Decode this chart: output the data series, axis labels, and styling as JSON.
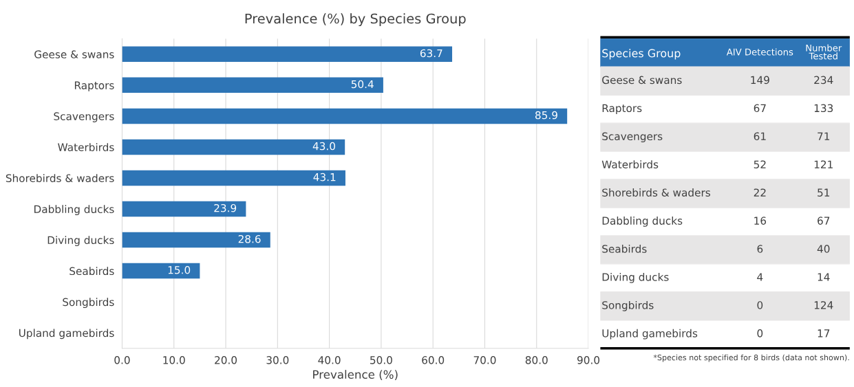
{
  "chart_data": [
    {
      "type": "bar",
      "orientation": "horizontal",
      "title": "Prevalence (%) by Species Group",
      "xlabel": "Prevalence (%)",
      "categories": [
        "Geese & swans",
        "Raptors",
        "Scavengers",
        "Waterbirds",
        "Shorebirds & waders",
        "Dabbling ducks",
        "Diving ducks",
        "Seabirds",
        "Songbirds",
        "Upland gamebirds"
      ],
      "values": [
        63.7,
        50.4,
        85.9,
        43.0,
        43.1,
        23.9,
        28.6,
        15.0,
        null,
        null
      ],
      "value_labels": [
        "63.7",
        "50.4",
        "85.9",
        "43.0",
        "43.1",
        "23.9",
        "28.6",
        "15.0",
        null,
        null
      ],
      "color": "#2e75b6",
      "xlim": [
        0,
        90
      ],
      "xticks": [
        {
          "value": 0,
          "label": "0.0"
        },
        {
          "value": 10,
          "label": "10.0"
        },
        {
          "value": 20,
          "label": "20.0"
        },
        {
          "value": 30,
          "label": "30.0"
        },
        {
          "value": 40,
          "label": "40.0"
        },
        {
          "value": 50,
          "label": "50.0"
        },
        {
          "value": 60,
          "label": "60.0"
        },
        {
          "value": 70,
          "label": "70.0"
        },
        {
          "value": 80,
          "label": "80.0"
        },
        {
          "value": 90,
          "label": "90.0"
        }
      ],
      "grid": "x",
      "legend": false
    },
    {
      "type": "other",
      "legend_title": "Species Group",
      "categories": [
        "Geese & swans",
        "Raptors",
        "Scavengers",
        "Waterbirds",
        "Shorebirds & waders",
        "Dabbling ducks",
        "Seabirds",
        "Diving ducks",
        "Songbirds",
        "Upland gamebirds"
      ],
      "series": [
        {
          "name": "AIV Detections",
          "values": [
            149,
            67,
            61,
            52,
            22,
            16,
            6,
            4,
            0,
            0
          ]
        },
        {
          "name": "Number Tested",
          "values": [
            234,
            133,
            71,
            121,
            51,
            67,
            40,
            14,
            124,
            17
          ]
        }
      ],
      "data_labels": true,
      "annotations": [
        "*Species not specified for 8 birds (data not shown)."
      ]
    }
  ]
}
